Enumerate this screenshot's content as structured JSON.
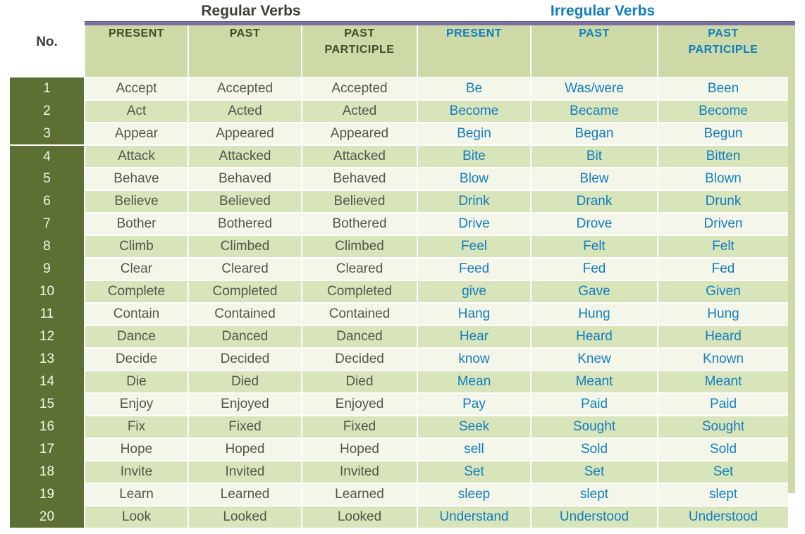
{
  "group_titles": {
    "regular": "Regular Verbs",
    "irregular": "Irregular Verbs"
  },
  "no_header": "No.",
  "column_headers": {
    "regular": [
      "PRESENT",
      "PAST",
      "PAST PARTICIPLE"
    ],
    "irregular": [
      "PRESENT",
      "PAST",
      "PAST PARTICIPLE"
    ]
  },
  "rows": [
    {
      "no": "1",
      "regular": [
        "Accept",
        "Accepted",
        "Accepted"
      ],
      "irregular": [
        "Be",
        "Was/were",
        "Been"
      ]
    },
    {
      "no": "2",
      "regular": [
        "Act",
        "Acted",
        "Acted"
      ],
      "irregular": [
        "Become",
        "Became",
        "Become"
      ]
    },
    {
      "no": "3",
      "regular": [
        "Appear",
        "Appeared",
        "Appeared"
      ],
      "irregular": [
        "Begin",
        "Began",
        "Begun"
      ]
    },
    {
      "no": "4",
      "regular": [
        "Attack",
        "Attacked",
        "Attacked"
      ],
      "irregular": [
        "Bite",
        "Bit",
        "Bitten"
      ]
    },
    {
      "no": "5",
      "regular": [
        "Behave",
        "Behaved",
        "Behaved"
      ],
      "irregular": [
        "Blow",
        "Blew",
        "Blown"
      ]
    },
    {
      "no": "6",
      "regular": [
        "Believe",
        "Believed",
        "Believed"
      ],
      "irregular": [
        "Drink",
        "Drank",
        "Drunk"
      ]
    },
    {
      "no": "7",
      "regular": [
        "Bother",
        "Bothered",
        "Bothered"
      ],
      "irregular": [
        "Drive",
        "Drove",
        "Driven"
      ]
    },
    {
      "no": "8",
      "regular": [
        "Climb",
        "Climbed",
        "Climbed"
      ],
      "irregular": [
        "Feel",
        "Felt",
        "Felt"
      ]
    },
    {
      "no": "9",
      "regular": [
        "Clear",
        "Cleared",
        "Cleared"
      ],
      "irregular": [
        "Feed",
        "Fed",
        "Fed"
      ]
    },
    {
      "no": "10",
      "regular": [
        "Complete",
        "Completed",
        "Completed"
      ],
      "irregular": [
        "give",
        "Gave",
        "Given"
      ]
    },
    {
      "no": "11",
      "regular": [
        "Contain",
        "Contained",
        "Contained"
      ],
      "irregular": [
        "Hang",
        "Hung",
        "Hung"
      ]
    },
    {
      "no": "12",
      "regular": [
        "Dance",
        "Danced",
        "Danced"
      ],
      "irregular": [
        "Hear",
        "Heard",
        "Heard"
      ]
    },
    {
      "no": "13",
      "regular": [
        "Decide",
        "Decided",
        "Decided"
      ],
      "irregular": [
        "know",
        "Knew",
        "Known"
      ]
    },
    {
      "no": "14",
      "regular": [
        "Die",
        "Died",
        "Died"
      ],
      "irregular": [
        "Mean",
        "Meant",
        "Meant"
      ]
    },
    {
      "no": "15",
      "regular": [
        "Enjoy",
        "Enjoyed",
        "Enjoyed"
      ],
      "irregular": [
        "Pay",
        "Paid",
        "Paid"
      ]
    },
    {
      "no": "16",
      "regular": [
        "Fix",
        "Fixed",
        "Fixed"
      ],
      "irregular": [
        "Seek",
        "Sought",
        "Sought"
      ]
    },
    {
      "no": "17",
      "regular": [
        "Hope",
        "Hoped",
        "Hoped"
      ],
      "irregular": [
        "sell",
        "Sold",
        "Sold"
      ]
    },
    {
      "no": "18",
      "regular": [
        "Invite",
        "Invited",
        "Invited"
      ],
      "irregular": [
        "Set",
        "Set",
        "Set"
      ]
    },
    {
      "no": "19",
      "regular": [
        "Learn",
        "Learned",
        "Learned"
      ],
      "irregular": [
        "sleep",
        "slept",
        "slept"
      ]
    },
    {
      "no": "20",
      "regular": [
        "Look",
        "Looked",
        "Looked"
      ],
      "irregular": [
        "Understand",
        "Understood",
        "Understood"
      ]
    }
  ],
  "colors": {
    "accent_purple": "#7b6ea3",
    "header_green": "#cdd9a7",
    "row_green": "#d8e4ba",
    "row_ivory": "#f3f6e8",
    "number_column_olive": "#5d7033",
    "irregular_blue": "#147dc0",
    "regular_text": "#55564c",
    "title_dark": "#3e3f33",
    "irregular_title_blue": "#0f7dbe"
  }
}
